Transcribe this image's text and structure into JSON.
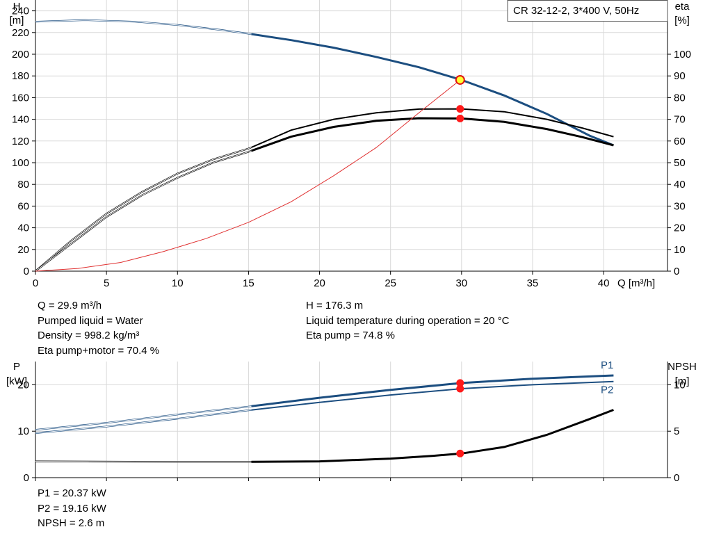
{
  "chart_data": [
    {
      "type": "line",
      "title": "CR 32-12-2, 3*400 V, 50Hz",
      "xlabel": "Q [m³/h]",
      "ylabel": "H",
      "ylabel_unit": "[m]",
      "y2label": "eta",
      "y2label_unit": "[%]",
      "xlim": [
        0,
        44.5
      ],
      "ylim": [
        0,
        250
      ],
      "y2lim": [
        0,
        125
      ],
      "x_ticks": [
        0,
        5,
        10,
        15,
        20,
        25,
        30,
        35,
        40
      ],
      "y_ticks": [
        0,
        20,
        40,
        60,
        80,
        100,
        120,
        140,
        160,
        180,
        200,
        220,
        240
      ],
      "y2_ticks": [
        0,
        10,
        20,
        30,
        40,
        50,
        60,
        70,
        80,
        90,
        100
      ],
      "grid": true,
      "series": [
        {
          "key": "head",
          "axis": "left",
          "color": "#1c4e80",
          "x": [
            0,
            3.5,
            7,
            10,
            13,
            15,
            18,
            21,
            24,
            27,
            30,
            33,
            36,
            39,
            40.7
          ],
          "y": [
            230,
            231.5,
            230,
            227,
            222.5,
            219,
            213,
            206,
            197.5,
            188,
            176.3,
            162,
            145,
            125,
            116
          ]
        },
        {
          "key": "eta_pump",
          "axis": "right",
          "color": "#000000",
          "x": [
            0,
            2.5,
            5,
            7.5,
            10,
            12.5,
            15,
            18,
            21,
            24,
            27,
            30,
            33,
            36,
            38.5,
            40.7
          ],
          "y": [
            0,
            14,
            26.5,
            36.5,
            45,
            51.5,
            56.5,
            65,
            70,
            73,
            74.7,
            74.8,
            73.5,
            70,
            66,
            62
          ]
        },
        {
          "key": "eta_total",
          "axis": "right",
          "color": "#000000",
          "x": [
            0,
            2.5,
            5,
            7.5,
            10,
            12.5,
            15,
            18,
            21,
            24,
            27,
            30,
            33,
            36,
            38.5,
            40.7
          ],
          "y": [
            0,
            12.5,
            25,
            35,
            43,
            50,
            55,
            62,
            66.5,
            69.3,
            70.5,
            70.4,
            68.8,
            65.5,
            61.8,
            58
          ]
        },
        {
          "key": "system",
          "axis": "left",
          "color": "#e03030",
          "x": [
            0,
            3,
            6,
            9,
            12,
            15,
            18,
            21,
            24,
            27,
            29.9
          ],
          "y": [
            0,
            2.5,
            8,
            18,
            30,
            45,
            64,
            88,
            114,
            146,
            176.3
          ]
        }
      ],
      "duty_point": {
        "x": 29.9,
        "y": 176.3
      },
      "markers": [
        {
          "x": 29.9,
          "y": 74.8,
          "axis": "right"
        },
        {
          "x": 29.9,
          "y": 70.4,
          "axis": "right"
        }
      ]
    },
    {
      "type": "line",
      "xlabel": "",
      "ylabel": "P",
      "ylabel_unit": "[kW]",
      "y2label": "NPSH",
      "y2label_unit": "[m]",
      "xlim": [
        0,
        44.5
      ],
      "ylim": [
        0,
        25
      ],
      "y2lim": [
        0,
        12.5
      ],
      "y_ticks": [
        0,
        10,
        20
      ],
      "y2_ticks": [
        0,
        5,
        10
      ],
      "grid": true,
      "series": [
        {
          "key": "p1",
          "name": "P1",
          "axis": "left",
          "color": "#1c4e80",
          "x": [
            0,
            5,
            10,
            15,
            20,
            25,
            30,
            35,
            40.7
          ],
          "y": [
            10.3,
            11.8,
            13.6,
            15.3,
            17.2,
            18.9,
            20.37,
            21.3,
            22.0
          ]
        },
        {
          "key": "p2",
          "name": "P2",
          "axis": "left",
          "color": "#1c4e80",
          "x": [
            0,
            5,
            10,
            15,
            20,
            25,
            30,
            35,
            40.7
          ],
          "y": [
            9.6,
            11.0,
            12.7,
            14.5,
            16.2,
            17.8,
            19.16,
            20.0,
            20.7
          ]
        },
        {
          "key": "npsh",
          "axis": "right",
          "color": "#000000",
          "x": [
            0,
            10,
            15,
            20,
            25,
            28,
            30,
            33,
            36,
            39,
            40.7
          ],
          "y": [
            1.75,
            1.7,
            1.7,
            1.75,
            2.05,
            2.35,
            2.6,
            3.3,
            4.6,
            6.3,
            7.3
          ]
        }
      ],
      "markers": [
        {
          "x": 29.9,
          "y": 20.37,
          "axis": "left"
        },
        {
          "x": 29.9,
          "y": 19.16,
          "axis": "left"
        },
        {
          "x": 29.9,
          "y": 2.6,
          "axis": "right"
        }
      ]
    }
  ],
  "info_top_left": [
    "Q = 29.9 m³/h",
    "Pumped liquid = Water",
    "Density = 998.2 kg/m³",
    "Eta pump+motor = 70.4 %"
  ],
  "info_top_right": [
    "H = 176.3 m",
    "Liquid temperature during operation = 20 °C",
    "Eta pump = 74.8 %"
  ],
  "info_bottom": [
    "P1 = 20.37 kW",
    "P2 = 19.16 kW",
    "NPSH = 2.6 m"
  ]
}
